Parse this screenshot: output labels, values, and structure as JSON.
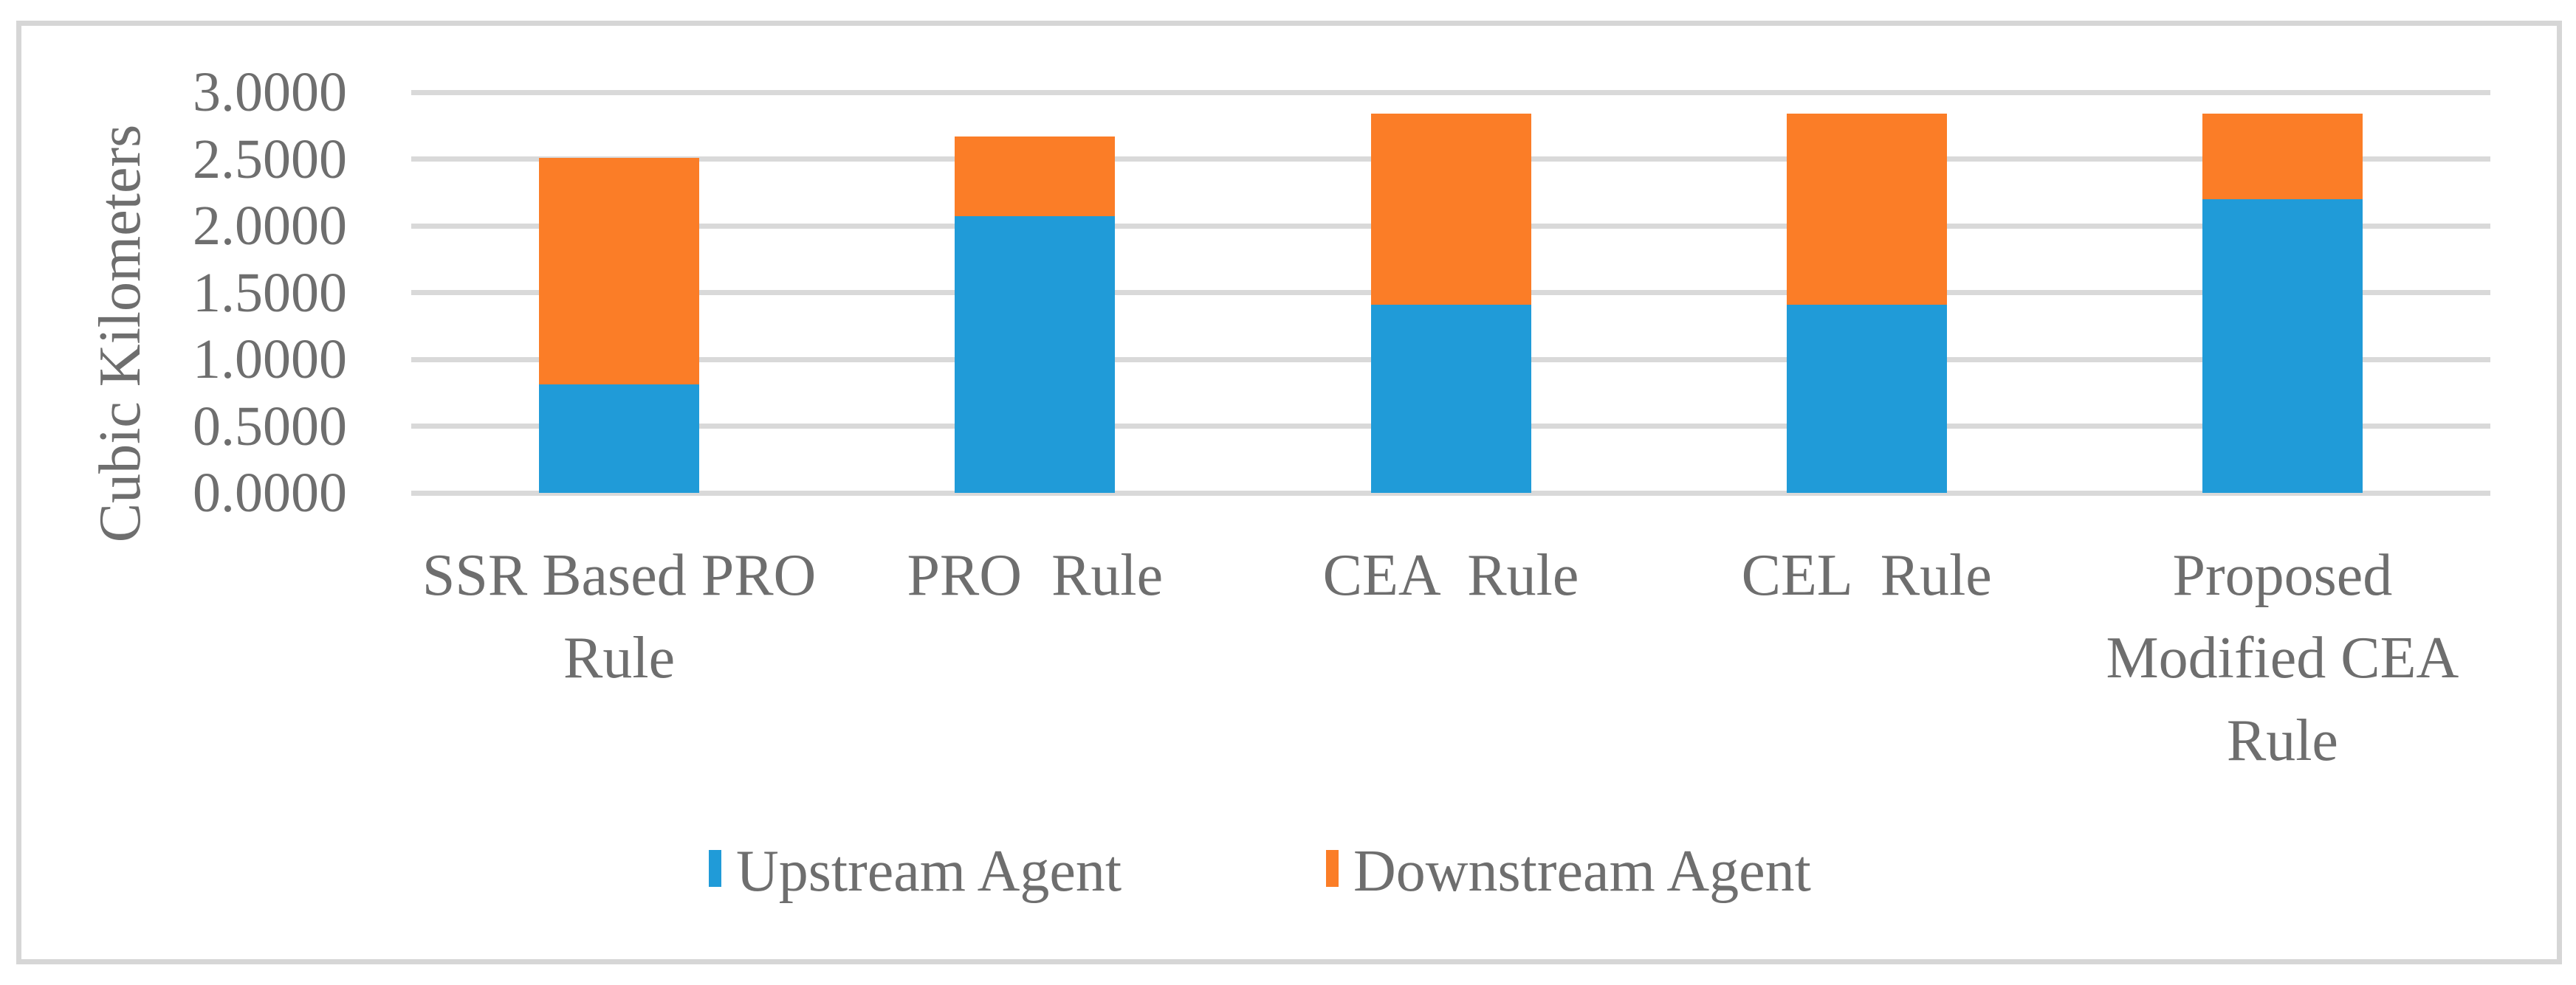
{
  "figure": {
    "background": "#FFFFFF",
    "border_color": "#D6D6D6"
  },
  "chart_data": {
    "type": "bar",
    "stacked": true,
    "title": "",
    "ylabel": "Cubic Kilometers",
    "ylim": [
      0,
      3
    ],
    "ytick_step": 0.5,
    "yticks": [
      "3.0000",
      "2.5000",
      "2.0000",
      "1.5000",
      "1.0000",
      "0.5000",
      "0.0000"
    ],
    "grid": true,
    "gridline_color": "#D9D9D9",
    "text_color": "#6E6E6E",
    "legend_position": "bottom",
    "categories": [
      "SSR Based PRO Rule",
      "PRO Rule",
      "CEA Rule",
      "CEL Rule",
      "Proposed Modified CEA Rule"
    ],
    "category_label_lines": [
      [
        "SSR Based PRO",
        "Rule"
      ],
      [
        "PRO  Rule"
      ],
      [
        "CEA  Rule"
      ],
      [
        "CEL  Rule"
      ],
      [
        "Proposed",
        "Modified CEA",
        "Rule"
      ]
    ],
    "series": [
      {
        "name": "Upstream Agent",
        "color": "#209BD8",
        "values": [
          0.81,
          2.07,
          1.41,
          1.41,
          2.2
        ]
      },
      {
        "name": "Downstream Agent",
        "color": "#FB7D27",
        "values": [
          1.7,
          0.6,
          1.43,
          1.43,
          0.64
        ]
      }
    ]
  }
}
